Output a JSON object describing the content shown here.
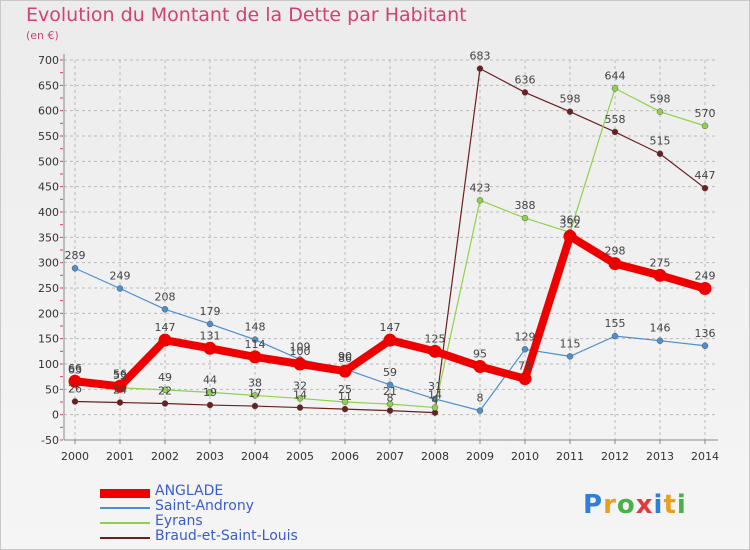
{
  "title": "Evolution du Montant de la Dette par Habitant",
  "subtitle": "(en €)",
  "logo": "Proxiti",
  "chart_data": {
    "type": "line",
    "title": "Evolution du Montant de la Dette par Habitant",
    "subtitle": "(en €)",
    "xlabel": "",
    "ylabel": "",
    "x": [
      2000,
      2001,
      2002,
      2003,
      2004,
      2005,
      2006,
      2007,
      2008,
      2009,
      2010,
      2011,
      2012,
      2013,
      2014
    ],
    "ylim": [
      -50,
      700
    ],
    "yticks": [
      -50,
      0,
      50,
      100,
      150,
      200,
      250,
      300,
      350,
      400,
      450,
      500,
      550,
      600,
      650,
      700
    ],
    "grid": true,
    "legend": "bottom-left",
    "series": [
      {
        "name": "ANGLADE",
        "color": "#ee0000",
        "values": [
          66,
          56,
          147,
          131,
          114,
          100,
          86,
          147,
          125,
          95,
          71,
          352,
          298,
          275,
          249
        ]
      },
      {
        "name": "Saint-Androny",
        "color": "#4e8fcf",
        "values": [
          289,
          249,
          208,
          179,
          148,
          109,
          90,
          59,
          31,
          8,
          129,
          115,
          155,
          146,
          136
        ]
      },
      {
        "name": "Eyrans",
        "color": "#8fd24a",
        "values": [
          63,
          53,
          49,
          44,
          38,
          32,
          25,
          21,
          14,
          423,
          388,
          360,
          644,
          598,
          570
        ]
      },
      {
        "name": "Braud-et-Saint-Louis",
        "color": "#6b1f1f",
        "values": [
          26,
          24,
          22,
          19,
          17,
          14,
          11,
          8,
          4,
          683,
          636,
          598,
          558,
          515,
          447
        ]
      }
    ]
  }
}
